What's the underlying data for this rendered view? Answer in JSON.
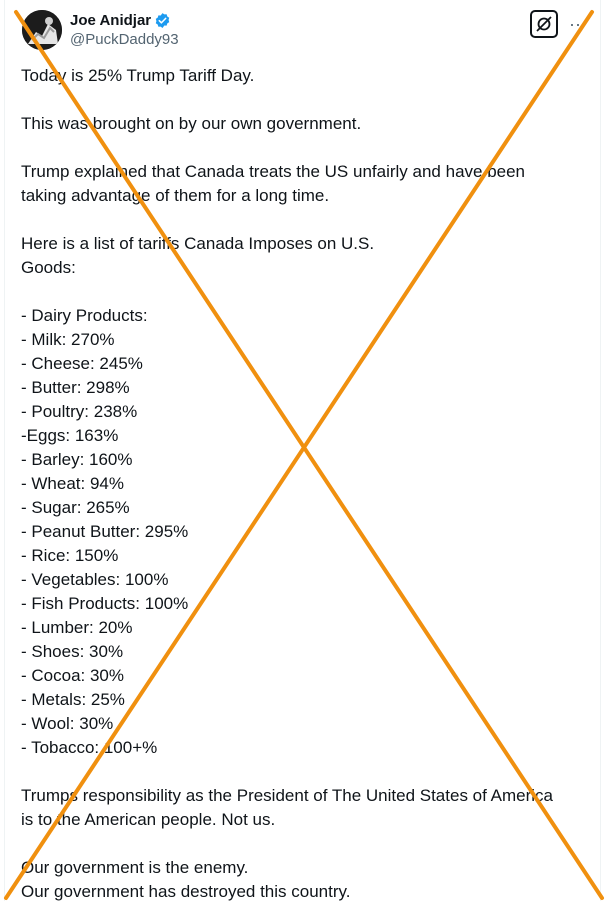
{
  "author": {
    "display_name": "Joe Anidjar",
    "handle": "@PuckDaddy93",
    "verified_icon": "verified-badge-icon",
    "badge_color": "#1d9bf0"
  },
  "actions": {
    "grok_icon": "grok-icon",
    "more_icon": "more-options-icon",
    "more_label": "···"
  },
  "post": {
    "lines": [
      "Today is 25% Trump Tariff Day.",
      "",
      "This was brought on by our own government.",
      "",
      "Trump explained that Canada treats the US unfairly and have been",
      "taking advantage of them for a long time.",
      "",
      "Here is a list of tariffs Canada Imposes on U.S.",
      "Goods:",
      "",
      "- Dairy Products:",
      "- Milk: 270%",
      "- Cheese: 245%",
      "- Butter: 298%",
      "- Poultry: 238%",
      "-Eggs: 163%",
      "- Barley: 160%",
      "- Wheat: 94%",
      "- Sugar: 265%",
      "- Peanut Butter: 295%",
      "- Rice: 150%",
      "- Vegetables: 100%",
      "- Fish Products: 100%",
      "- Lumber: 20%",
      "- Shoes: 30%",
      "- Cocoa: 30%",
      "- Metals: 25%",
      "- Wool: 30%",
      "- Tobacco: 100+%",
      "",
      "Trumps responsibility as the President of The United States of America",
      "is to the American people. Not us.",
      "",
      "Our government is the enemy.",
      "Our government has destroyed this country."
    ]
  },
  "overlay": {
    "type": "cross-out-x",
    "color": "#f0900f"
  }
}
